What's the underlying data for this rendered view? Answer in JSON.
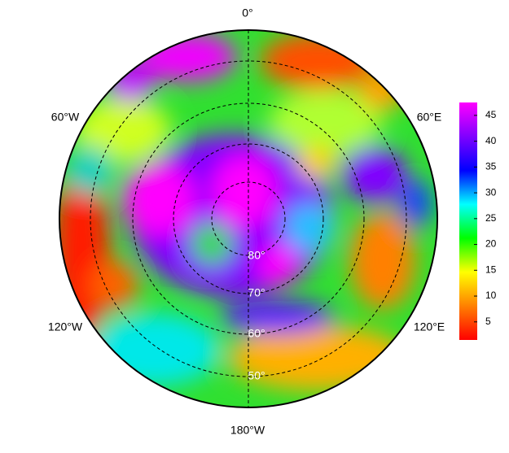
{
  "map": {
    "longitude_labels": [
      "0°",
      "60°E",
      "120°E",
      "180°W",
      "120°W",
      "60°W"
    ],
    "latitude_labels": [
      "80°",
      "70°",
      "60°",
      "50°"
    ],
    "colorbar": {
      "lim": [
        1.5,
        47.5
      ],
      "ticks": [
        5,
        10,
        15,
        20,
        25,
        30,
        35,
        40,
        45
      ],
      "colors": [
        "#ff0000",
        "#ff8000",
        "#ffff00",
        "#00ff00",
        "#00ffff",
        "#0000ff",
        "#8000ff",
        "#ff00ff"
      ]
    }
  }
}
